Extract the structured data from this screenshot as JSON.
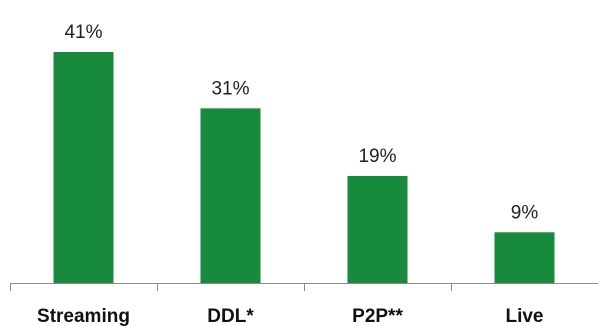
{
  "chart_data": {
    "type": "bar",
    "categories": [
      "Streaming",
      "DDL*",
      "P2P**",
      "Live"
    ],
    "values": [
      41,
      31,
      19,
      9
    ],
    "data_labels": [
      "41%",
      "31%",
      "19%",
      "9%"
    ],
    "title": "",
    "xlabel": "",
    "ylabel": "",
    "ylim": [
      0,
      41
    ],
    "grid": false,
    "legend": "none",
    "bar_color": "#178A3C",
    "axis_color": "#8C8C8C"
  }
}
